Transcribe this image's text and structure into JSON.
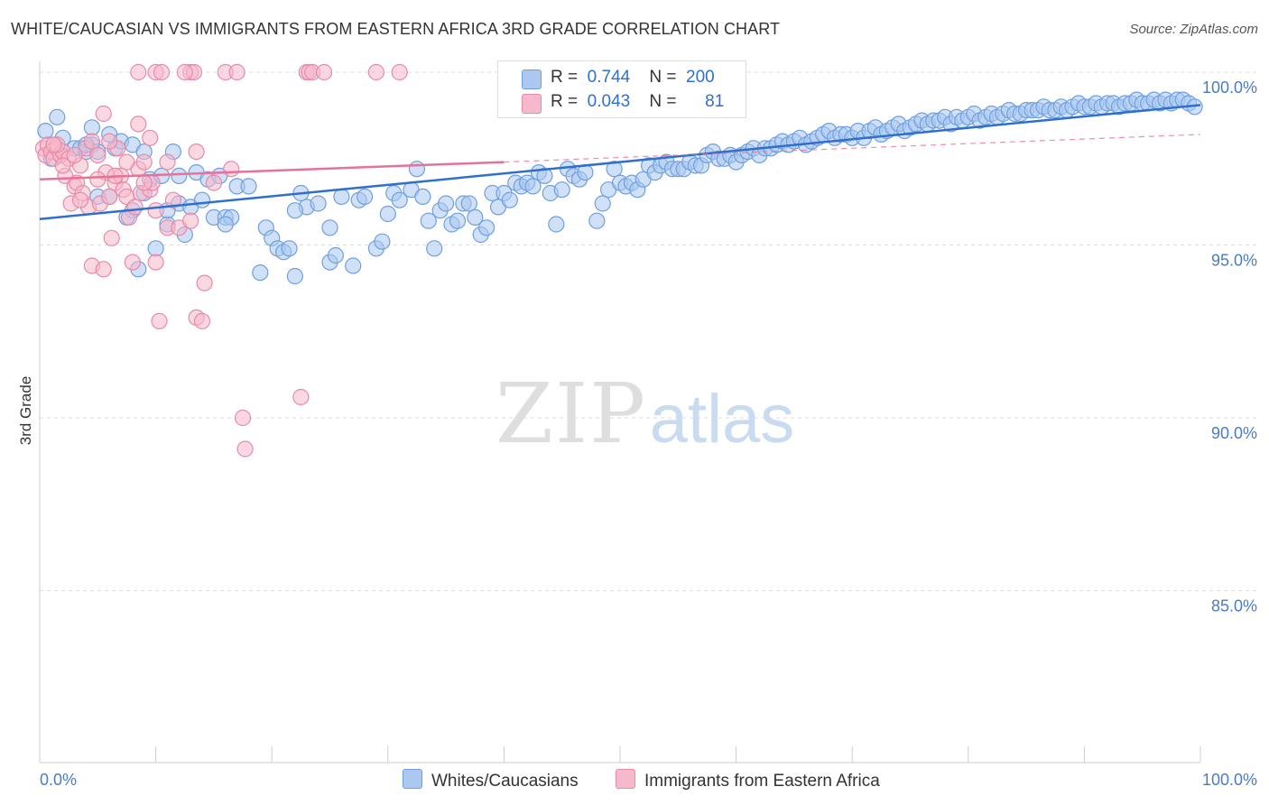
{
  "title": "WHITE/CAUCASIAN VS IMMIGRANTS FROM EASTERN AFRICA 3RD GRADE CORRELATION CHART",
  "source": "Source: ZipAtlas.com",
  "watermark": {
    "zip": "ZIP",
    "atlas": "atlas"
  },
  "legend": {
    "rows": [
      {
        "r_label": "R =",
        "r_value": "0.744",
        "n_label": "N =",
        "n_value": "200",
        "color": "#aac8f0",
        "stroke": "#6f9fe0"
      },
      {
        "r_label": "R =",
        "r_value": "0.043",
        "n_label": "N =",
        "n_value": "81",
        "color": "#f6b8cb",
        "stroke": "#e88aa8"
      }
    ]
  },
  "bottom_legend": [
    {
      "label": "Whites/Caucasians",
      "color": "#aac8f0",
      "stroke": "#6f9fe0"
    },
    {
      "label": "Immigrants from Eastern Africa",
      "color": "#f6b8cb",
      "stroke": "#e88aa8"
    }
  ],
  "chart_data": {
    "type": "scatter",
    "title": "WHITE/CAUCASIAN VS IMMIGRANTS FROM EASTERN AFRICA 3RD GRADE CORRELATION CHART",
    "xlabel": "",
    "ylabel": "3rd Grade",
    "xlim": [
      0,
      100
    ],
    "ylim": [
      80.5,
      100.5
    ],
    "x_tick_labels": [
      {
        "value": 0,
        "label": "0.0%"
      },
      {
        "value": 100,
        "label": "100.0%"
      }
    ],
    "y_ticks": [
      {
        "value": 85,
        "label": "85.0%"
      },
      {
        "value": 90,
        "label": "90.0%"
      },
      {
        "value": 95,
        "label": "95.0%"
      },
      {
        "value": 100,
        "label": "100.0%"
      }
    ],
    "grid": true,
    "legend_position": "top-center",
    "series": [
      {
        "name": "Whites/Caucasians",
        "color": "#aac8f0",
        "stroke": "#6f9fe0",
        "line_color": "#2f6fce",
        "trend": {
          "x0": 0,
          "y0": 95.75,
          "x1": 100,
          "y1": 99.05
        },
        "points": [
          [
            0.5,
            98.3
          ],
          [
            1.5,
            98.7
          ],
          [
            1,
            97.5
          ],
          [
            2,
            98.1
          ],
          [
            3,
            97.8
          ],
          [
            3.5,
            97.8
          ],
          [
            4,
            97.7
          ],
          [
            4.5,
            97.9
          ],
          [
            4.5,
            98.4
          ],
          [
            5,
            96.4
          ],
          [
            5,
            97.7
          ],
          [
            6,
            96.4
          ],
          [
            6,
            98.2
          ],
          [
            6.5,
            97.8
          ],
          [
            7,
            98.0
          ],
          [
            8,
            97.9
          ],
          [
            8,
            96.0
          ],
          [
            8.5,
            94.3
          ],
          [
            9,
            96.5
          ],
          [
            9.5,
            96.9
          ],
          [
            10,
            94.9
          ],
          [
            10.5,
            97.0
          ],
          [
            11,
            95.6
          ],
          [
            11.5,
            97.7
          ],
          [
            12,
            96.2
          ],
          [
            12,
            97.0
          ],
          [
            12.5,
            95.3
          ],
          [
            13,
            96.1
          ],
          [
            14,
            96.3
          ],
          [
            13.5,
            97.1
          ],
          [
            14.5,
            96.9
          ],
          [
            15,
            95.8
          ],
          [
            15.5,
            97.0
          ],
          [
            16,
            95.8
          ],
          [
            16.5,
            95.8
          ],
          [
            17,
            96.7
          ],
          [
            18,
            96.7
          ],
          [
            19,
            94.2
          ],
          [
            19.5,
            95.5
          ],
          [
            20,
            95.2
          ],
          [
            20.5,
            94.9
          ],
          [
            21,
            94.8
          ],
          [
            21.5,
            94.9
          ],
          [
            22,
            94.1
          ],
          [
            22.5,
            96.5
          ],
          [
            23,
            96.1
          ],
          [
            24,
            96.2
          ],
          [
            25,
            95.5
          ],
          [
            25,
            94.5
          ],
          [
            25.5,
            94.7
          ],
          [
            26,
            96.4
          ],
          [
            27,
            94.4
          ],
          [
            27.5,
            96.3
          ],
          [
            28,
            96.4
          ],
          [
            29,
            94.9
          ],
          [
            29.5,
            95.1
          ],
          [
            30,
            95.9
          ],
          [
            30.5,
            96.5
          ],
          [
            31,
            96.3
          ],
          [
            32,
            96.6
          ],
          [
            32.5,
            97.2
          ],
          [
            33,
            96.4
          ],
          [
            33.5,
            95.7
          ],
          [
            34,
            94.9
          ],
          [
            34.5,
            96.0
          ],
          [
            35,
            96.2
          ],
          [
            35.5,
            95.6
          ],
          [
            36,
            95.7
          ],
          [
            36.5,
            96.2
          ],
          [
            37,
            96.2
          ],
          [
            37.5,
            95.8
          ],
          [
            38,
            95.3
          ],
          [
            38.5,
            95.5
          ],
          [
            39,
            96.5
          ],
          [
            39.5,
            96.1
          ],
          [
            40,
            96.5
          ],
          [
            40.5,
            96.3
          ],
          [
            41,
            96.8
          ],
          [
            41.5,
            96.7
          ],
          [
            42,
            96.8
          ],
          [
            42.5,
            96.7
          ],
          [
            43,
            97.1
          ],
          [
            43.5,
            97.0
          ],
          [
            44,
            96.5
          ],
          [
            44.5,
            95.6
          ],
          [
            45,
            96.6
          ],
          [
            45.5,
            97.2
          ],
          [
            46,
            97.0
          ],
          [
            46.5,
            96.9
          ],
          [
            47,
            97.1
          ],
          [
            48,
            95.7
          ],
          [
            48.5,
            96.2
          ],
          [
            49,
            96.6
          ],
          [
            49.5,
            97.2
          ],
          [
            50,
            96.8
          ],
          [
            50.5,
            96.7
          ],
          [
            51,
            96.8
          ],
          [
            51.5,
            96.6
          ],
          [
            52,
            96.9
          ],
          [
            52.5,
            97.3
          ],
          [
            53,
            97.1
          ],
          [
            53.5,
            97.3
          ],
          [
            54,
            97.4
          ],
          [
            54.5,
            97.2
          ],
          [
            55,
            97.2
          ],
          [
            55.5,
            97.2
          ],
          [
            56,
            97.4
          ],
          [
            56.5,
            97.3
          ],
          [
            57,
            97.3
          ],
          [
            57.5,
            97.6
          ],
          [
            58,
            97.7
          ],
          [
            58.5,
            97.5
          ],
          [
            59,
            97.5
          ],
          [
            59.5,
            97.6
          ],
          [
            60,
            97.4
          ],
          [
            60.5,
            97.6
          ],
          [
            61,
            97.7
          ],
          [
            61.5,
            97.8
          ],
          [
            62,
            97.6
          ],
          [
            62.5,
            97.8
          ],
          [
            63,
            97.8
          ],
          [
            63.5,
            97.9
          ],
          [
            64,
            98.0
          ],
          [
            64.5,
            97.9
          ],
          [
            65,
            98.0
          ],
          [
            65.5,
            98.1
          ],
          [
            66,
            97.9
          ],
          [
            66.5,
            98.0
          ],
          [
            67,
            98.1
          ],
          [
            67.5,
            98.2
          ],
          [
            68,
            98.3
          ],
          [
            68.5,
            98.1
          ],
          [
            69,
            98.2
          ],
          [
            69.5,
            98.2
          ],
          [
            70,
            98.1
          ],
          [
            70.5,
            98.3
          ],
          [
            71,
            98.1
          ],
          [
            71.5,
            98.3
          ],
          [
            72,
            98.4
          ],
          [
            72.5,
            98.2
          ],
          [
            73,
            98.3
          ],
          [
            73.5,
            98.4
          ],
          [
            74,
            98.5
          ],
          [
            74.5,
            98.3
          ],
          [
            75,
            98.4
          ],
          [
            75.5,
            98.5
          ],
          [
            76,
            98.6
          ],
          [
            76.5,
            98.5
          ],
          [
            77,
            98.6
          ],
          [
            77.5,
            98.6
          ],
          [
            78,
            98.7
          ],
          [
            78.5,
            98.5
          ],
          [
            79,
            98.7
          ],
          [
            79.5,
            98.6
          ],
          [
            80,
            98.7
          ],
          [
            80.5,
            98.8
          ],
          [
            81,
            98.6
          ],
          [
            81.5,
            98.7
          ],
          [
            82,
            98.8
          ],
          [
            82.5,
            98.7
          ],
          [
            83,
            98.8
          ],
          [
            83.5,
            98.9
          ],
          [
            84,
            98.8
          ],
          [
            84.5,
            98.8
          ],
          [
            85,
            98.9
          ],
          [
            85.5,
            98.9
          ],
          [
            86,
            98.9
          ],
          [
            86.5,
            99.0
          ],
          [
            87,
            98.9
          ],
          [
            87.5,
            98.9
          ],
          [
            88,
            99.0
          ],
          [
            88.5,
            98.9
          ],
          [
            89,
            99.0
          ],
          [
            89.5,
            99.1
          ],
          [
            90,
            99.0
          ],
          [
            90.5,
            99.0
          ],
          [
            91,
            99.1
          ],
          [
            91.5,
            99.0
          ],
          [
            92,
            99.1
          ],
          [
            92.5,
            99.1
          ],
          [
            93,
            99.0
          ],
          [
            93.5,
            99.1
          ],
          [
            94,
            99.1
          ],
          [
            94.5,
            99.2
          ],
          [
            95,
            99.1
          ],
          [
            95.5,
            99.1
          ],
          [
            96,
            99.2
          ],
          [
            96.5,
            99.1
          ],
          [
            97,
            99.2
          ],
          [
            97.5,
            99.1
          ],
          [
            98,
            99.2
          ],
          [
            98.5,
            99.2
          ],
          [
            99,
            99.1
          ],
          [
            99.5,
            99.0
          ],
          [
            4,
            97.9
          ],
          [
            7.5,
            95.8
          ],
          [
            9,
            97.7
          ],
          [
            11,
            96.0
          ],
          [
            16,
            95.6
          ],
          [
            22,
            96.0
          ]
        ]
      },
      {
        "name": "Immigrants from Eastern Africa",
        "color": "#f6b8cb",
        "stroke": "#e88aa8",
        "line_color": "#e8719a",
        "trend": {
          "x0": 0,
          "y0": 96.9,
          "x1": 40,
          "y1": 97.4
        },
        "trend_dashed": {
          "x0": 40,
          "y0": 97.4,
          "x1": 100,
          "y1": 98.2
        },
        "points": [
          [
            0.3,
            97.8
          ],
          [
            0.5,
            97.6
          ],
          [
            0.7,
            97.9
          ],
          [
            1,
            97.7
          ],
          [
            1.2,
            97.5
          ],
          [
            1.5,
            97.8
          ],
          [
            1.8,
            97.6
          ],
          [
            2,
            97.7
          ],
          [
            2.2,
            97.0
          ],
          [
            2.5,
            97.5
          ],
          [
            2.7,
            96.2
          ],
          [
            3,
            96.7
          ],
          [
            3.2,
            96.8
          ],
          [
            3.5,
            97.3
          ],
          [
            3.7,
            96.5
          ],
          [
            4,
            97.8
          ],
          [
            4.2,
            96.1
          ],
          [
            4.5,
            94.4
          ],
          [
            5,
            97.6
          ],
          [
            5.2,
            96.2
          ],
          [
            5.5,
            94.3
          ],
          [
            5.7,
            97.1
          ],
          [
            6,
            96.4
          ],
          [
            6.2,
            95.2
          ],
          [
            6.5,
            96.8
          ],
          [
            6.7,
            97.8
          ],
          [
            7,
            97.0
          ],
          [
            7.2,
            96.6
          ],
          [
            7.5,
            96.4
          ],
          [
            7.7,
            95.8
          ],
          [
            8,
            94.5
          ],
          [
            8.2,
            96.1
          ],
          [
            8.5,
            97.2
          ],
          [
            8.7,
            96.5
          ],
          [
            9,
            97.4
          ],
          [
            9.5,
            96.6
          ],
          [
            9.7,
            96.8
          ],
          [
            10,
            94.5
          ],
          [
            10.3,
            92.8
          ],
          [
            11,
            95.5
          ],
          [
            11.5,
            96.3
          ],
          [
            12,
            95.5
          ],
          [
            13,
            95.7
          ],
          [
            13.5,
            92.9
          ],
          [
            14,
            92.8
          ],
          [
            14.2,
            93.9
          ],
          [
            15,
            96.8
          ],
          [
            16.5,
            97.2
          ],
          [
            17.5,
            90.0
          ],
          [
            17.7,
            89.1
          ],
          [
            22.5,
            90.6
          ],
          [
            8.5,
            100.0
          ],
          [
            10,
            100.0
          ],
          [
            10.5,
            100.0
          ],
          [
            13,
            100.0
          ],
          [
            13.3,
            100.0
          ],
          [
            16,
            100.0
          ],
          [
            17,
            100.0
          ],
          [
            23,
            100.0
          ],
          [
            23.2,
            100.0
          ],
          [
            23.5,
            100.0
          ],
          [
            24.5,
            100.0
          ],
          [
            29,
            100.0
          ],
          [
            31,
            100.0
          ],
          [
            5.5,
            98.8
          ],
          [
            8.5,
            98.5
          ],
          [
            9.5,
            98.1
          ],
          [
            12.5,
            100.0
          ],
          [
            6,
            98.0
          ],
          [
            4.5,
            98.0
          ],
          [
            1.5,
            97.9
          ],
          [
            2,
            97.3
          ],
          [
            11,
            97.4
          ],
          [
            13.5,
            97.7
          ],
          [
            7.5,
            97.4
          ],
          [
            10,
            96.0
          ],
          [
            6.5,
            97.0
          ],
          [
            3.5,
            96.3
          ],
          [
            9,
            96.8
          ],
          [
            5,
            96.9
          ],
          [
            3,
            97.6
          ],
          [
            1.2,
            97.9
          ]
        ]
      }
    ]
  }
}
